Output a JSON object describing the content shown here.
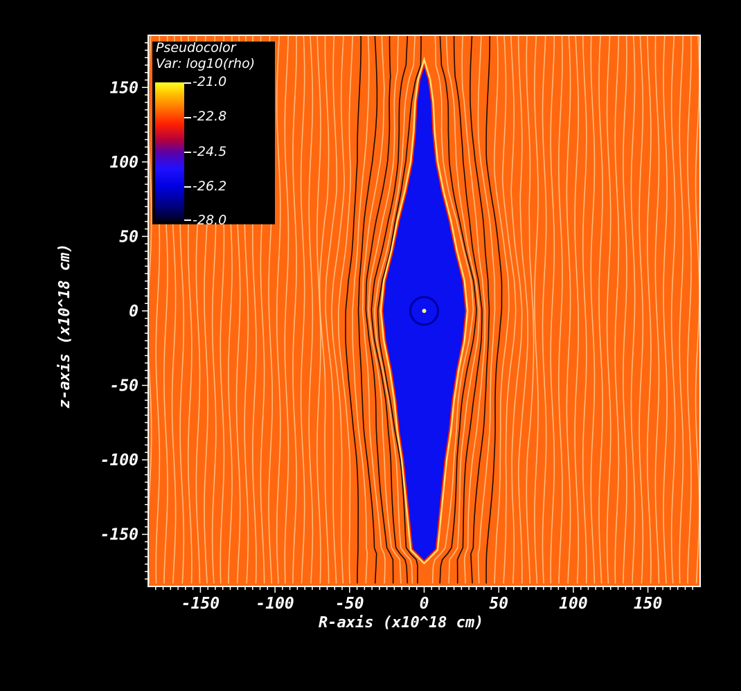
{
  "chart_data": {
    "type": "heatmap",
    "plot_type_label": "Pseudocolor",
    "variable_label": "Var: log10(rho)",
    "colorbar": {
      "ticks": [
        "-21.0",
        "-22.8",
        "-24.5",
        "-26.2",
        "-28.0"
      ],
      "range": [
        -28.0,
        -21.0
      ]
    },
    "xlabel": "R-axis (x10^18 cm)",
    "ylabel": "z-axis (x10^18 cm)",
    "xlim": [
      -185,
      185
    ],
    "ylim": [
      -185,
      185
    ],
    "xticks": [
      -150,
      -100,
      -50,
      0,
      50,
      100,
      150
    ],
    "yticks": [
      150,
      100,
      50,
      0,
      -50,
      -100,
      -150
    ],
    "xtick_labels": [
      "-150",
      "-100",
      "-50",
      "0",
      "50",
      "100",
      "150"
    ],
    "ytick_labels": [
      "150",
      "100",
      "50",
      "0",
      "-50",
      "-100",
      "-150"
    ],
    "cavity_profile": [
      [
        165,
        0
      ],
      [
        155,
        3
      ],
      [
        140,
        5
      ],
      [
        120,
        6
      ],
      [
        100,
        8
      ],
      [
        80,
        12
      ],
      [
        60,
        17
      ],
      [
        40,
        21
      ],
      [
        20,
        26
      ],
      [
        0,
        28
      ],
      [
        -20,
        26
      ],
      [
        -40,
        22
      ],
      [
        -60,
        19
      ],
      [
        -80,
        17
      ],
      [
        -100,
        14
      ],
      [
        -120,
        12
      ],
      [
        -140,
        10
      ],
      [
        -150,
        9
      ],
      [
        -160,
        8
      ],
      [
        -165,
        3
      ],
      [
        -168,
        0
      ]
    ],
    "colors": {
      "ambient": "#ff6810",
      "cavity": "#0a10f0",
      "field_line_light": "#ffd8a0",
      "field_line_dark": "#000000",
      "background": "#000000"
    }
  }
}
